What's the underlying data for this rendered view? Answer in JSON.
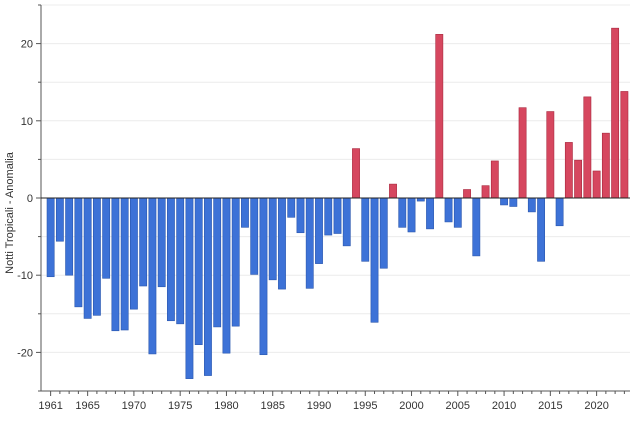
{
  "chart_data": {
    "type": "bar",
    "title": "",
    "xlabel": "",
    "ylabel": "Notti Tropicali - Anomalia",
    "ylim": [
      -25,
      25
    ],
    "y_ticks": [
      -20,
      -10,
      0,
      10,
      20
    ],
    "x_tick_labels": [
      "1961",
      "1965",
      "1970",
      "1975",
      "1980",
      "1985",
      "1990",
      "1995",
      "2000",
      "2005",
      "2010",
      "2015",
      "2020"
    ],
    "grid": true,
    "legend": "none",
    "colors": {
      "positive": "#d6475f",
      "negative": "#3d72d7",
      "grid": "#ececec",
      "axis": "#555555"
    },
    "categories": [
      1961,
      1962,
      1963,
      1964,
      1965,
      1966,
      1967,
      1968,
      1969,
      1970,
      1971,
      1972,
      1973,
      1974,
      1975,
      1976,
      1977,
      1978,
      1979,
      1980,
      1981,
      1982,
      1983,
      1984,
      1985,
      1986,
      1987,
      1988,
      1989,
      1990,
      1991,
      1992,
      1993,
      1994,
      1995,
      1996,
      1997,
      1998,
      1999,
      2000,
      2001,
      2002,
      2003,
      2004,
      2005,
      2006,
      2007,
      2008,
      2009,
      2010,
      2011,
      2012,
      2013,
      2014,
      2015,
      2016,
      2017,
      2018,
      2019,
      2020,
      2021,
      2022,
      2023
    ],
    "values": [
      -10.2,
      -5.6,
      -10.0,
      -14.1,
      -15.6,
      -15.2,
      -10.4,
      -17.2,
      -17.1,
      -14.4,
      -11.4,
      -20.2,
      -11.5,
      -15.9,
      -16.3,
      -23.4,
      -19.0,
      -23.0,
      -16.7,
      -20.1,
      -16.6,
      -3.8,
      -9.9,
      -20.3,
      -10.6,
      -11.8,
      -2.5,
      -4.5,
      -11.7,
      -8.5,
      -4.8,
      -4.6,
      -6.2,
      6.4,
      -8.2,
      -16.1,
      -9.1,
      1.8,
      -3.8,
      -4.4,
      -0.4,
      -4.0,
      21.2,
      -3.1,
      -3.8,
      1.1,
      -7.5,
      1.6,
      4.8,
      -0.9,
      -1.1,
      11.7,
      -1.8,
      -8.2,
      11.2,
      -3.6,
      7.2,
      4.9,
      13.1,
      3.5,
      8.4,
      22.0,
      13.8
    ]
  }
}
